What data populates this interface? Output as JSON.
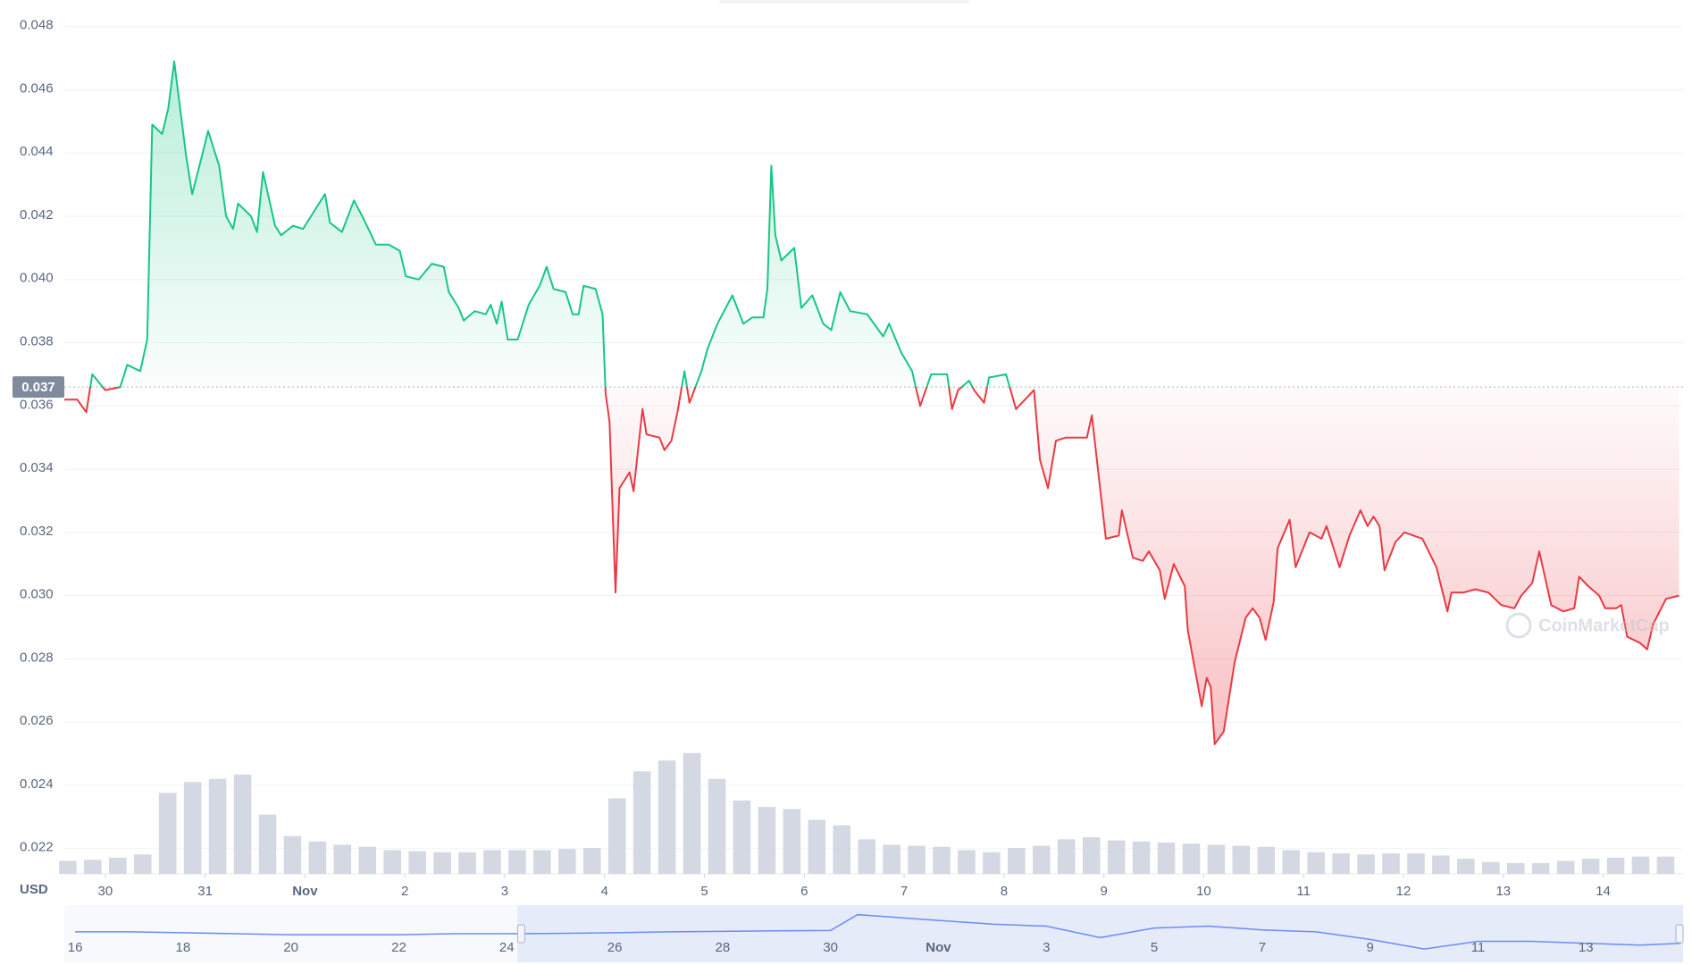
{
  "chart_data": {
    "type": "line",
    "color_up": "#16c784",
    "color_down": "#ea3943",
    "grid": true,
    "xlim": [
      29.59,
      45.8
    ],
    "ylim": [
      0.0212,
      0.0485
    ],
    "yticks": [
      0.022,
      0.024,
      0.026,
      0.028,
      {
        "value": 0.03,
        "label": "0.030"
      },
      0.032,
      0.034,
      0.036,
      0.038,
      {
        "value": 0.04,
        "label": "0.040"
      },
      0.042,
      0.044,
      0.046,
      0.048
    ],
    "xticks": [
      30,
      31,
      {
        "value": 32,
        "label": "Nov"
      },
      {
        "value": 33,
        "label": "2"
      },
      {
        "value": 34,
        "label": "3"
      },
      {
        "value": 35,
        "label": "4"
      },
      {
        "value": 36,
        "label": "5"
      },
      {
        "value": 37,
        "label": "6"
      },
      {
        "value": 38,
        "label": "7"
      },
      {
        "value": 39,
        "label": "8"
      },
      {
        "value": 40,
        "label": "9"
      },
      {
        "value": 41,
        "label": "10"
      },
      {
        "value": 42,
        "label": "11"
      },
      {
        "value": 43,
        "label": "12"
      },
      {
        "value": 44,
        "label": "13"
      },
      {
        "value": 45,
        "label": "14"
      }
    ],
    "baseline": {
      "value": 0.0366,
      "label": "0.037"
    },
    "currency": "USD",
    "watermark": "CoinMarketCap",
    "x": [
      29.59,
      29.72,
      29.81,
      29.87,
      30.0,
      30.15,
      30.22,
      30.35,
      30.42,
      30.47,
      30.57,
      30.63,
      30.69,
      30.81,
      30.87,
      30.96,
      31.03,
      31.14,
      31.21,
      31.28,
      31.33,
      31.46,
      31.52,
      31.58,
      31.7,
      31.76,
      31.88,
      31.98,
      32.1,
      32.2,
      32.25,
      32.37,
      32.49,
      32.59,
      32.71,
      32.84,
      32.95,
      33.01,
      33.14,
      33.27,
      33.39,
      33.44,
      33.54,
      33.59,
      33.7,
      33.81,
      33.86,
      33.92,
      33.97,
      34.03,
      34.13,
      34.24,
      34.35,
      34.42,
      34.49,
      34.61,
      34.68,
      34.74,
      34.79,
      34.91,
      34.98,
      35.01,
      35.05,
      35.11,
      35.15,
      35.25,
      35.29,
      35.38,
      35.42,
      35.55,
      35.6,
      35.67,
      35.73,
      35.8,
      35.85,
      35.97,
      36.03,
      36.13,
      36.28,
      36.39,
      36.48,
      36.59,
      36.63,
      36.67,
      36.71,
      36.77,
      36.9,
      36.97,
      37.08,
      37.19,
      37.27,
      37.36,
      37.46,
      37.63,
      37.79,
      37.85,
      37.97,
      38.08,
      38.16,
      38.27,
      38.43,
      38.48,
      38.54,
      38.65,
      38.7,
      38.8,
      38.85,
      39.02,
      39.12,
      39.3,
      39.36,
      39.44,
      39.52,
      39.62,
      39.73,
      39.83,
      39.88,
      39.94,
      40.02,
      40.15,
      40.18,
      40.29,
      40.39,
      40.45,
      40.56,
      40.61,
      40.7,
      40.81,
      40.84,
      40.98,
      41.03,
      41.07,
      41.11,
      41.2,
      41.31,
      41.42,
      41.49,
      41.56,
      41.62,
      41.7,
      41.74,
      41.86,
      41.92,
      42.06,
      42.18,
      42.23,
      42.36,
      42.46,
      42.57,
      42.64,
      42.7,
      42.76,
      42.81,
      42.92,
      43.01,
      43.19,
      43.33,
      43.44,
      43.48,
      43.6,
      43.72,
      43.85,
      43.98,
      44.11,
      44.18,
      44.29,
      44.36,
      44.48,
      44.6,
      44.71,
      44.76,
      44.85,
      44.96,
      45.02,
      45.13,
      45.18,
      45.24,
      45.37,
      45.44,
      45.5,
      45.63,
      45.76
    ],
    "values": [
      0.0362,
      0.0362,
      0.0358,
      0.037,
      0.0365,
      0.0366,
      0.0373,
      0.0371,
      0.0381,
      0.0449,
      0.0446,
      0.0454,
      0.0469,
      0.0439,
      0.0427,
      0.0438,
      0.0447,
      0.0436,
      0.042,
      0.0416,
      0.0424,
      0.042,
      0.0415,
      0.0434,
      0.0417,
      0.0414,
      0.0417,
      0.0416,
      0.0422,
      0.0427,
      0.0418,
      0.0415,
      0.0425,
      0.0419,
      0.0411,
      0.0411,
      0.0409,
      0.0401,
      0.04,
      0.0405,
      0.0404,
      0.0396,
      0.0391,
      0.0387,
      0.039,
      0.0389,
      0.0392,
      0.0386,
      0.0393,
      0.0381,
      0.0381,
      0.0392,
      0.0398,
      0.0404,
      0.0397,
      0.0396,
      0.0389,
      0.0389,
      0.0398,
      0.0397,
      0.0389,
      0.0364,
      0.0355,
      0.0301,
      0.0334,
      0.0339,
      0.0333,
      0.0359,
      0.0351,
      0.035,
      0.0346,
      0.0349,
      0.0358,
      0.0371,
      0.0361,
      0.0371,
      0.0378,
      0.0386,
      0.0395,
      0.0386,
      0.0388,
      0.0388,
      0.0397,
      0.0436,
      0.0414,
      0.0406,
      0.041,
      0.0391,
      0.0395,
      0.0386,
      0.0384,
      0.0396,
      0.039,
      0.0389,
      0.0382,
      0.0386,
      0.0377,
      0.0371,
      0.036,
      0.037,
      0.037,
      0.0359,
      0.0365,
      0.0368,
      0.0365,
      0.0361,
      0.0369,
      0.037,
      0.0359,
      0.0365,
      0.0343,
      0.0334,
      0.0349,
      0.035,
      0.035,
      0.035,
      0.0357,
      0.034,
      0.0318,
      0.0319,
      0.0327,
      0.0312,
      0.0311,
      0.0314,
      0.0308,
      0.0299,
      0.031,
      0.0303,
      0.0289,
      0.0265,
      0.0274,
      0.0271,
      0.0253,
      0.0257,
      0.0279,
      0.0293,
      0.0296,
      0.0293,
      0.0286,
      0.0298,
      0.0315,
      0.0324,
      0.0309,
      0.032,
      0.0318,
      0.0322,
      0.0309,
      0.0319,
      0.0327,
      0.0322,
      0.0325,
      0.0322,
      0.0308,
      0.0317,
      0.032,
      0.0318,
      0.0309,
      0.0295,
      0.0301,
      0.0301,
      0.0302,
      0.0301,
      0.0297,
      0.0296,
      0.03,
      0.0304,
      0.0314,
      0.0297,
      0.0295,
      0.0296,
      0.0306,
      0.0303,
      0.03,
      0.0296,
      0.0296,
      0.0297,
      0.0287,
      0.0285,
      0.0283,
      0.0291,
      0.0299,
      0.03
    ],
    "volume": {
      "color": "#d3d8e2",
      "ylim": [
        0,
        800
      ],
      "x": [
        29.625,
        29.875,
        30.125,
        30.375,
        30.625,
        30.875,
        31.125,
        31.375,
        31.625,
        31.875,
        32.125,
        32.375,
        32.625,
        32.875,
        33.125,
        33.375,
        33.625,
        33.875,
        34.125,
        34.375,
        34.625,
        34.875,
        35.125,
        35.375,
        35.625,
        35.875,
        36.125,
        36.375,
        36.625,
        36.875,
        37.125,
        37.375,
        37.625,
        37.875,
        38.125,
        38.375,
        38.625,
        38.875,
        39.125,
        39.375,
        39.625,
        39.875,
        40.125,
        40.375,
        40.625,
        40.875,
        41.125,
        41.375,
        41.625,
        41.875,
        42.125,
        42.375,
        42.625,
        42.875,
        43.125,
        43.375,
        43.625,
        43.875,
        44.125,
        44.375,
        44.625,
        44.875,
        45.125,
        45.375,
        45.625
      ],
      "values": [
        12,
        13,
        15,
        18,
        75,
        85,
        88,
        92,
        55,
        35,
        30,
        27,
        25,
        22,
        21,
        20,
        20,
        22,
        22,
        22,
        23,
        24,
        70,
        95,
        105,
        112,
        88,
        68,
        62,
        60,
        50,
        45,
        32,
        27,
        26,
        25,
        22,
        20,
        24,
        26,
        32,
        34,
        31,
        30,
        29,
        28,
        27,
        26,
        25,
        22,
        20,
        19,
        18,
        19,
        19,
        17,
        14,
        11,
        10,
        10,
        12,
        14,
        15,
        16,
        16
      ]
    },
    "navigator": {
      "color": "#6b8cf5",
      "xlim": [
        15.8,
        45.8
      ],
      "ylim": [
        0.02,
        0.05
      ],
      "window": [
        24.2,
        45.8
      ],
      "xticks": [
        16,
        18,
        20,
        22,
        24,
        26,
        28,
        30,
        {
          "value": 32,
          "label": "Nov"
        },
        {
          "value": 34,
          "label": "3"
        },
        {
          "value": 36,
          "label": "5"
        },
        {
          "value": 38,
          "label": "7"
        },
        {
          "value": 40,
          "label": "9"
        },
        {
          "value": 42,
          "label": "11"
        },
        {
          "value": 44,
          "label": "13"
        }
      ],
      "x": [
        16,
        17,
        18,
        19,
        20,
        21,
        22,
        23,
        24,
        25,
        26,
        27,
        28,
        29,
        30,
        30.5,
        31,
        32,
        33,
        34,
        35,
        36,
        37,
        38,
        39,
        40,
        41,
        42,
        43,
        44,
        45,
        45.75
      ],
      "values": [
        0.036,
        0.036,
        0.0355,
        0.035,
        0.0345,
        0.0345,
        0.0345,
        0.035,
        0.035,
        0.0352,
        0.0355,
        0.036,
        0.0362,
        0.0365,
        0.0367,
        0.045,
        0.044,
        0.042,
        0.04,
        0.039,
        0.033,
        0.038,
        0.039,
        0.037,
        0.036,
        0.032,
        0.027,
        0.031,
        0.031,
        0.03,
        0.029,
        0.03
      ]
    }
  }
}
